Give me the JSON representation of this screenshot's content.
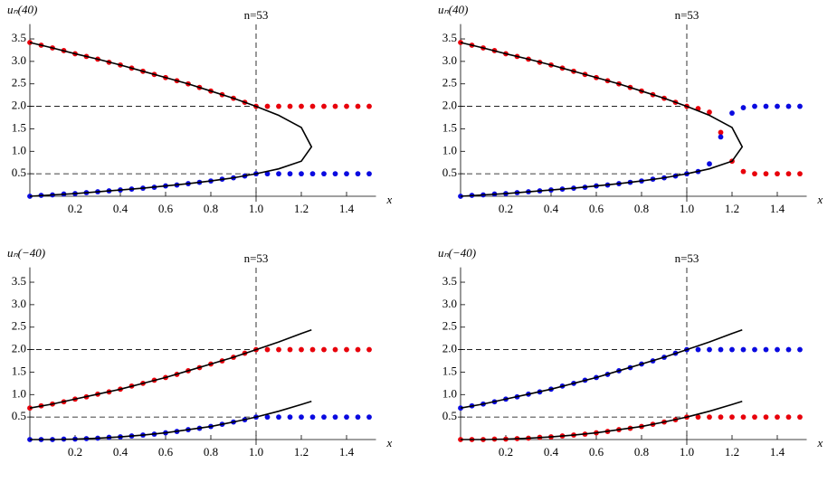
{
  "chart_data": [
    {
      "type": "scatter",
      "y_label": "uₙ(40)",
      "x_label": "x",
      "annotation": "n=53",
      "xlim": [
        0,
        1.53
      ],
      "ylim": [
        0,
        3.75
      ],
      "xticks": [
        0.2,
        0.4,
        0.6,
        0.8,
        {
          "value": 1,
          "label": "1.0"
        },
        1.2,
        1.4
      ],
      "yticks": [
        0.5,
        {
          "value": 1,
          "label": "1.0"
        },
        1.5,
        {
          "value": 2,
          "label": "2.0"
        },
        2.5,
        {
          "value": 3,
          "label": "3.0"
        },
        3.5
      ],
      "reference_lines": {
        "x": [
          1
        ],
        "y": [
          2,
          0.5
        ]
      },
      "x": [
        0,
        0.05,
        0.1,
        0.15,
        0.2,
        0.25,
        0.3,
        0.35,
        0.4,
        0.45,
        0.5,
        0.55,
        0.6,
        0.65,
        0.7,
        0.75,
        0.8,
        0.85,
        0.9,
        0.95,
        1,
        1.05,
        1.1,
        1.15,
        1.2,
        1.25,
        1.3,
        1.35,
        1.4,
        1.45,
        1.5
      ],
      "series": [
        {
          "style": "dots",
          "color": "#e8000b",
          "values": [
            3.42,
            3.36,
            3.3,
            3.24,
            3.17,
            3.11,
            3.05,
            2.98,
            2.92,
            2.85,
            2.78,
            2.71,
            2.64,
            2.57,
            2.5,
            2.42,
            2.34,
            2.26,
            2.18,
            2.09,
            2.0,
            2,
            2,
            2,
            2,
            2,
            2,
            2,
            2,
            2,
            2
          ]
        },
        {
          "style": "dots",
          "color": "#0a0ae0",
          "values": [
            0,
            0.02,
            0.03,
            0.05,
            0.06,
            0.08,
            0.1,
            0.12,
            0.14,
            0.16,
            0.18,
            0.2,
            0.23,
            0.25,
            0.28,
            0.31,
            0.34,
            0.38,
            0.41,
            0.45,
            0.5,
            0.5,
            0.5,
            0.5,
            0.5,
            0.5,
            0.5,
            0.5,
            0.5,
            0.5,
            0.5
          ]
        },
        {
          "style": "line",
          "color": "#000000",
          "x": [
            0,
            0.1,
            0.2,
            0.3,
            0.4,
            0.5,
            0.6,
            0.7,
            0.8,
            0.9,
            1,
            1.1,
            1.2,
            1.245,
            1.2,
            1.1,
            1,
            0.9,
            0.8,
            0.7,
            0.6,
            0.5,
            0.4,
            0.3,
            0.2,
            0.1,
            0
          ],
          "values": [
            3.42,
            3.3,
            3.17,
            3.05,
            2.92,
            2.78,
            2.64,
            2.5,
            2.34,
            2.18,
            2.0,
            1.8,
            1.53,
            1.1,
            0.78,
            0.61,
            0.5,
            0.41,
            0.34,
            0.28,
            0.23,
            0.18,
            0.14,
            0.1,
            0.06,
            0.03,
            0
          ]
        }
      ]
    },
    {
      "type": "scatter",
      "y_label": "uₙ(40)",
      "x_label": "x",
      "annotation": "n=53",
      "xlim": [
        0,
        1.53
      ],
      "ylim": [
        0,
        3.75
      ],
      "xticks": [
        0.2,
        0.4,
        0.6,
        0.8,
        {
          "value": 1,
          "label": "1.0"
        },
        1.2,
        1.4
      ],
      "yticks": [
        0.5,
        {
          "value": 1,
          "label": "1.0"
        },
        1.5,
        {
          "value": 2,
          "label": "2.0"
        },
        2.5,
        {
          "value": 3,
          "label": "3.0"
        },
        3.5
      ],
      "reference_lines": {
        "x": [
          1
        ],
        "y": [
          2,
          0.5
        ]
      },
      "x": [
        0,
        0.05,
        0.1,
        0.15,
        0.2,
        0.25,
        0.3,
        0.35,
        0.4,
        0.45,
        0.5,
        0.55,
        0.6,
        0.65,
        0.7,
        0.75,
        0.8,
        0.85,
        0.9,
        0.95,
        1,
        1.05,
        1.1,
        1.15,
        1.2,
        1.25,
        1.3,
        1.35,
        1.4,
        1.45,
        1.5
      ],
      "series": [
        {
          "style": "dots",
          "color": "#e8000b",
          "values": [
            3.42,
            3.36,
            3.3,
            3.24,
            3.17,
            3.11,
            3.05,
            2.98,
            2.92,
            2.85,
            2.78,
            2.71,
            2.64,
            2.57,
            2.5,
            2.42,
            2.34,
            2.26,
            2.18,
            2.09,
            2.0,
            1.95,
            1.87,
            1.42,
            0.78,
            0.55,
            0.5,
            0.5,
            0.5,
            0.5,
            0.5
          ]
        },
        {
          "style": "dots",
          "color": "#0a0ae0",
          "values": [
            0,
            0.02,
            0.03,
            0.05,
            0.06,
            0.08,
            0.1,
            0.12,
            0.14,
            0.16,
            0.18,
            0.2,
            0.23,
            0.25,
            0.28,
            0.31,
            0.34,
            0.38,
            0.41,
            0.45,
            0.5,
            0.55,
            0.72,
            1.32,
            1.85,
            1.97,
            2,
            2,
            2,
            2,
            2
          ]
        },
        {
          "style": "line",
          "color": "#000000",
          "x": [
            0,
            0.1,
            0.2,
            0.3,
            0.4,
            0.5,
            0.6,
            0.7,
            0.8,
            0.9,
            1,
            1.1,
            1.2,
            1.245,
            1.2,
            1.1,
            1,
            0.9,
            0.8,
            0.7,
            0.6,
            0.5,
            0.4,
            0.3,
            0.2,
            0.1,
            0
          ],
          "values": [
            3.42,
            3.3,
            3.17,
            3.05,
            2.92,
            2.78,
            2.64,
            2.5,
            2.34,
            2.18,
            2.0,
            1.8,
            1.53,
            1.1,
            0.78,
            0.61,
            0.5,
            0.41,
            0.34,
            0.28,
            0.23,
            0.18,
            0.14,
            0.1,
            0.06,
            0.03,
            0
          ]
        }
      ]
    },
    {
      "type": "scatter",
      "y_label": "uₙ(−40)",
      "x_label": "x",
      "annotation": "n=53",
      "xlim": [
        0,
        1.53
      ],
      "ylim": [
        0,
        3.75
      ],
      "xticks": [
        0.2,
        0.4,
        0.6,
        0.8,
        {
          "value": 1,
          "label": "1.0"
        },
        1.2,
        1.4
      ],
      "yticks": [
        0.5,
        {
          "value": 1,
          "label": "1.0"
        },
        1.5,
        {
          "value": 2,
          "label": "2.0"
        },
        2.5,
        {
          "value": 3,
          "label": "3.0"
        },
        3.5
      ],
      "reference_lines": {
        "x": [
          1
        ],
        "y": [
          2,
          0.5
        ]
      },
      "x": [
        0,
        0.05,
        0.1,
        0.15,
        0.2,
        0.25,
        0.3,
        0.35,
        0.4,
        0.45,
        0.5,
        0.55,
        0.6,
        0.65,
        0.7,
        0.75,
        0.8,
        0.85,
        0.9,
        0.95,
        1,
        1.05,
        1.1,
        1.15,
        1.2,
        1.25,
        1.3,
        1.35,
        1.4,
        1.45,
        1.5
      ],
      "series": [
        {
          "style": "dots",
          "color": "#e8000b",
          "values": [
            0.7,
            0.75,
            0.79,
            0.84,
            0.9,
            0.95,
            1.01,
            1.06,
            1.12,
            1.19,
            1.25,
            1.32,
            1.38,
            1.45,
            1.53,
            1.6,
            1.68,
            1.75,
            1.83,
            1.92,
            2.0,
            2,
            2,
            2,
            2,
            2,
            2,
            2,
            2,
            2,
            2
          ]
        },
        {
          "style": "dots",
          "color": "#0a0ae0",
          "values": [
            0,
            0,
            0,
            0.01,
            0.01,
            0.02,
            0.03,
            0.05,
            0.06,
            0.08,
            0.1,
            0.12,
            0.15,
            0.18,
            0.22,
            0.25,
            0.29,
            0.34,
            0.39,
            0.44,
            0.5,
            0.5,
            0.5,
            0.5,
            0.5,
            0.5,
            0.5,
            0.5,
            0.5,
            0.5,
            0.5
          ]
        },
        {
          "style": "line",
          "color": "#000000",
          "x": [
            0,
            0.1,
            0.2,
            0.3,
            0.4,
            0.5,
            0.6,
            0.7,
            0.8,
            0.9,
            1,
            1.1,
            1.2,
            1.245
          ],
          "values": [
            0.7,
            0.79,
            0.9,
            1.01,
            1.12,
            1.25,
            1.38,
            1.53,
            1.68,
            1.83,
            2.0,
            2.17,
            2.36,
            2.44
          ]
        },
        {
          "style": "line",
          "color": "#000000",
          "x": [
            0,
            0.1,
            0.2,
            0.3,
            0.4,
            0.5,
            0.6,
            0.7,
            0.8,
            0.9,
            1,
            1.1,
            1.2,
            1.245
          ],
          "values": [
            0,
            0,
            0.01,
            0.03,
            0.06,
            0.1,
            0.15,
            0.22,
            0.29,
            0.39,
            0.5,
            0.63,
            0.78,
            0.85
          ]
        }
      ]
    },
    {
      "type": "scatter",
      "y_label": "uₙ(−40)",
      "x_label": "x",
      "annotation": "n=53",
      "xlim": [
        0,
        1.53
      ],
      "ylim": [
        0,
        3.75
      ],
      "xticks": [
        0.2,
        0.4,
        0.6,
        0.8,
        {
          "value": 1,
          "label": "1.0"
        },
        1.2,
        1.4
      ],
      "yticks": [
        0.5,
        {
          "value": 1,
          "label": "1.0"
        },
        1.5,
        {
          "value": 2,
          "label": "2.0"
        },
        2.5,
        {
          "value": 3,
          "label": "3.0"
        },
        3.5
      ],
      "reference_lines": {
        "x": [
          1
        ],
        "y": [
          2,
          0.5
        ]
      },
      "x": [
        0,
        0.05,
        0.1,
        0.15,
        0.2,
        0.25,
        0.3,
        0.35,
        0.4,
        0.45,
        0.5,
        0.55,
        0.6,
        0.65,
        0.7,
        0.75,
        0.8,
        0.85,
        0.9,
        0.95,
        1,
        1.05,
        1.1,
        1.15,
        1.2,
        1.25,
        1.3,
        1.35,
        1.4,
        1.45,
        1.5
      ],
      "series": [
        {
          "style": "dots",
          "color": "#e8000b",
          "values": [
            0,
            0,
            0,
            0.01,
            0.01,
            0.02,
            0.03,
            0.05,
            0.06,
            0.08,
            0.1,
            0.12,
            0.15,
            0.18,
            0.22,
            0.25,
            0.29,
            0.34,
            0.39,
            0.44,
            0.5,
            0.5,
            0.5,
            0.5,
            0.5,
            0.5,
            0.5,
            0.5,
            0.5,
            0.5,
            0.5
          ]
        },
        {
          "style": "dots",
          "color": "#0a0ae0",
          "values": [
            0.7,
            0.75,
            0.79,
            0.84,
            0.9,
            0.95,
            1.01,
            1.06,
            1.12,
            1.19,
            1.25,
            1.32,
            1.38,
            1.45,
            1.53,
            1.6,
            1.68,
            1.75,
            1.83,
            1.92,
            2.0,
            2,
            2,
            2,
            2,
            2,
            2,
            2,
            2,
            2,
            2
          ]
        },
        {
          "style": "line",
          "color": "#000000",
          "x": [
            0,
            0.1,
            0.2,
            0.3,
            0.4,
            0.5,
            0.6,
            0.7,
            0.8,
            0.9,
            1,
            1.1,
            1.2,
            1.245
          ],
          "values": [
            0.7,
            0.79,
            0.9,
            1.01,
            1.12,
            1.25,
            1.38,
            1.53,
            1.68,
            1.83,
            2.0,
            2.17,
            2.36,
            2.44
          ]
        },
        {
          "style": "line",
          "color": "#000000",
          "x": [
            0,
            0.1,
            0.2,
            0.3,
            0.4,
            0.5,
            0.6,
            0.7,
            0.8,
            0.9,
            1,
            1.1,
            1.2,
            1.245
          ],
          "values": [
            0,
            0,
            0.01,
            0.03,
            0.06,
            0.1,
            0.15,
            0.22,
            0.29,
            0.39,
            0.5,
            0.63,
            0.78,
            0.85
          ]
        }
      ]
    }
  ]
}
